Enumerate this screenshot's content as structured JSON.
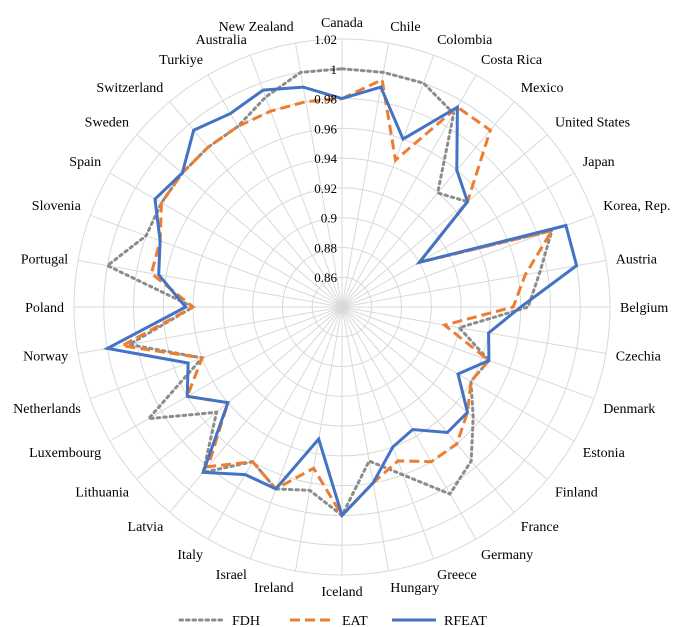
{
  "chart_data": {
    "type": "radar",
    "categories": [
      "Canada",
      "Chile",
      "Colombia",
      "Costa Rica",
      "Mexico",
      "United States",
      "Japan",
      "Korea, Rep.",
      "Austria",
      "Belgium",
      "Czechia",
      "Denmark",
      "Estonia",
      "Finland",
      "France",
      "Germany",
      "Greece",
      "Hungary",
      "Iceland",
      "Ireland",
      "Israel",
      "Italy",
      "Latvia",
      "Lithuania",
      "Luxembourg",
      "Netherlands",
      "Norway",
      "Poland",
      "Portugal",
      "Slovenia",
      "Spain",
      "Sweden",
      "Switzerland",
      "Turkiye",
      "Australia",
      "New Zealand"
    ],
    "rlim": [
      0.84,
      1.02
    ],
    "rticks": [
      0.86,
      0.88,
      0.9,
      0.92,
      0.94,
      0.96,
      0.98,
      1,
      1.02
    ],
    "rtick_labels": [
      "0.86",
      "0.88",
      "0.9",
      "0.92",
      "0.94",
      "0.96",
      "0.98",
      "1",
      "1.02"
    ],
    "series": [
      {
        "name": "FDH",
        "color": "#8c8c8c",
        "style": "dotted",
        "values": [
          1,
          1,
          1,
          0.99,
          0.94,
          0.95,
          0.9,
          0.99,
          0.975,
          0.965,
          0.92,
          0.945,
          0.94,
          0.955,
          0.975,
          0.985,
          0.96,
          0.945,
          0.98,
          0.965,
          0.97,
          0.96,
          0.985,
          0.95,
          0.99,
          0.94,
          0.985,
          0.94,
          1,
          0.98,
          0.98,
          0.98,
          0.98,
          0.98,
          0.99,
          1
        ]
      },
      {
        "name": "EAT",
        "color": "#ed7d31",
        "style": "dashed",
        "values": [
          0.98,
          0.995,
          0.945,
          0.995,
          0.995,
          0.95,
          0.9,
          0.99,
          0.965,
          0.955,
          0.91,
          0.945,
          0.94,
          0.95,
          0.96,
          0.96,
          0.95,
          0.96,
          0.98,
          0.95,
          0.97,
          0.96,
          0.98,
          0.94,
          0.96,
          0.94,
          0.99,
          0.94,
          0.97,
          0.97,
          0.98,
          0.98,
          0.98,
          0.98,
          0.98,
          0.98
        ]
      },
      {
        "name": "RFEAT",
        "color": "#4472c4",
        "style": "solid",
        "values": [
          0.98,
          0.99,
          0.96,
          0.995,
          0.96,
          0.95,
          0.9,
          1,
          1,
          0.96,
          0.94,
          0.945,
          0.93,
          0.95,
          0.95,
          0.935,
          0.94,
          0.96,
          0.98,
          0.93,
          0.97,
          0.97,
          0.985,
          0.94,
          0.96,
          0.95,
          1,
          0.945,
          0.965,
          0.97,
          0.985,
          0.98,
          0.995,
          0.99,
          0.995,
          0.99
        ]
      }
    ],
    "legend": {
      "position": "bottom"
    },
    "grid": true
  }
}
